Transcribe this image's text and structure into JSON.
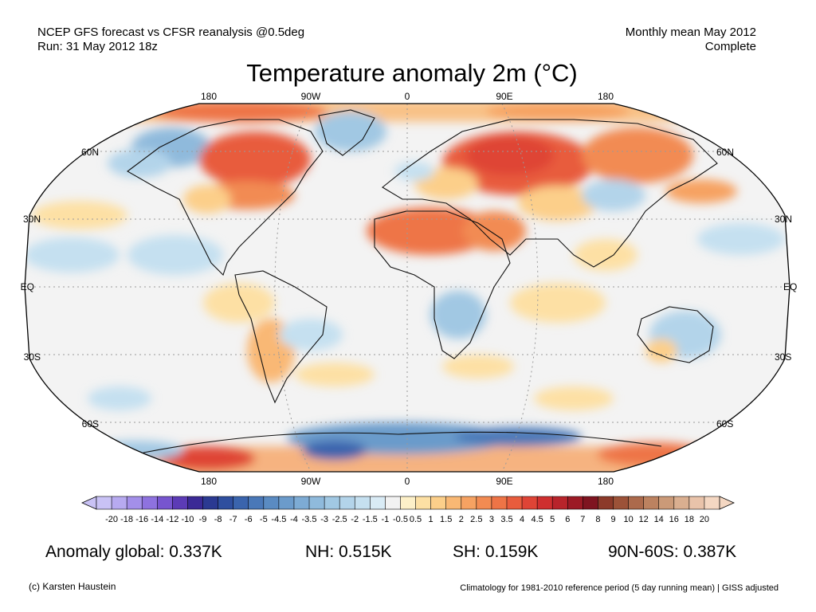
{
  "header": {
    "left_line1": "NCEP GFS forecast vs CFSR reanalysis @0.5deg",
    "left_line2": "Run: 31 May 2012 18z",
    "right_line1": "Monthly mean May 2012",
    "right_line2": "Complete"
  },
  "title": "Temperature anomaly 2m (°C)",
  "map": {
    "projection": "Robinson",
    "lon_labels": [
      "180",
      "90W",
      "0",
      "90E",
      "180"
    ],
    "lat_labels_left": [
      "60N",
      "30N",
      "EQ",
      "30S",
      "60S"
    ],
    "lat_labels_right": [
      "60N",
      "30N",
      "EQ",
      "30S",
      "60S"
    ],
    "ocean_neutral_color": "#f3f3f3"
  },
  "colorbar": {
    "ticks": [
      "-20",
      "-18",
      "-16",
      "-14",
      "-12",
      "-10",
      "-9",
      "-8",
      "-7",
      "-6",
      "-5",
      "-4.5",
      "-4",
      "-3.5",
      "-3",
      "-2.5",
      "-2",
      "-1.5",
      "-1",
      "-0.5",
      "0.5",
      "1",
      "1.5",
      "2",
      "2.5",
      "3",
      "3.5",
      "4",
      "4.5",
      "5",
      "6",
      "7",
      "8",
      "9",
      "10",
      "12",
      "14",
      "16",
      "18",
      "20"
    ],
    "colors": [
      "#c9c2f5",
      "#b7aaf0",
      "#a38fe9",
      "#8e72df",
      "#7755cf",
      "#5c3bb6",
      "#3b2a96",
      "#2b3a92",
      "#2f4f9f",
      "#3a64ad",
      "#4a78b8",
      "#5a8bc2",
      "#6b9bcb",
      "#7dabd4",
      "#8fbadc",
      "#a1c8e3",
      "#b3d4ea",
      "#c5e0f0",
      "#d9ebf5",
      "#f2f2f2",
      "#fdf0c8",
      "#fde0a4",
      "#fccf8a",
      "#f9b874",
      "#f6a262",
      "#f28b52",
      "#ee7446",
      "#e85c3d",
      "#df4436",
      "#cf2f2f",
      "#b8242b",
      "#9c1a25",
      "#7f1420",
      "#8c3a2a",
      "#9c5238",
      "#ac6a4c",
      "#bc8260",
      "#cb9a78",
      "#daaf90",
      "#e9c3aa",
      "#f4d7c2"
    ]
  },
  "stats": {
    "global": "Anomaly global: 0.337K",
    "nh": "NH: 0.515K",
    "sh": "SH: 0.159K",
    "arctic": "90N-60S: 0.387K"
  },
  "footer": {
    "left": "(c) Karsten Haustein",
    "right": "Climatology for 1981-2010 reference period (5 day running mean) | GISS adjusted"
  }
}
